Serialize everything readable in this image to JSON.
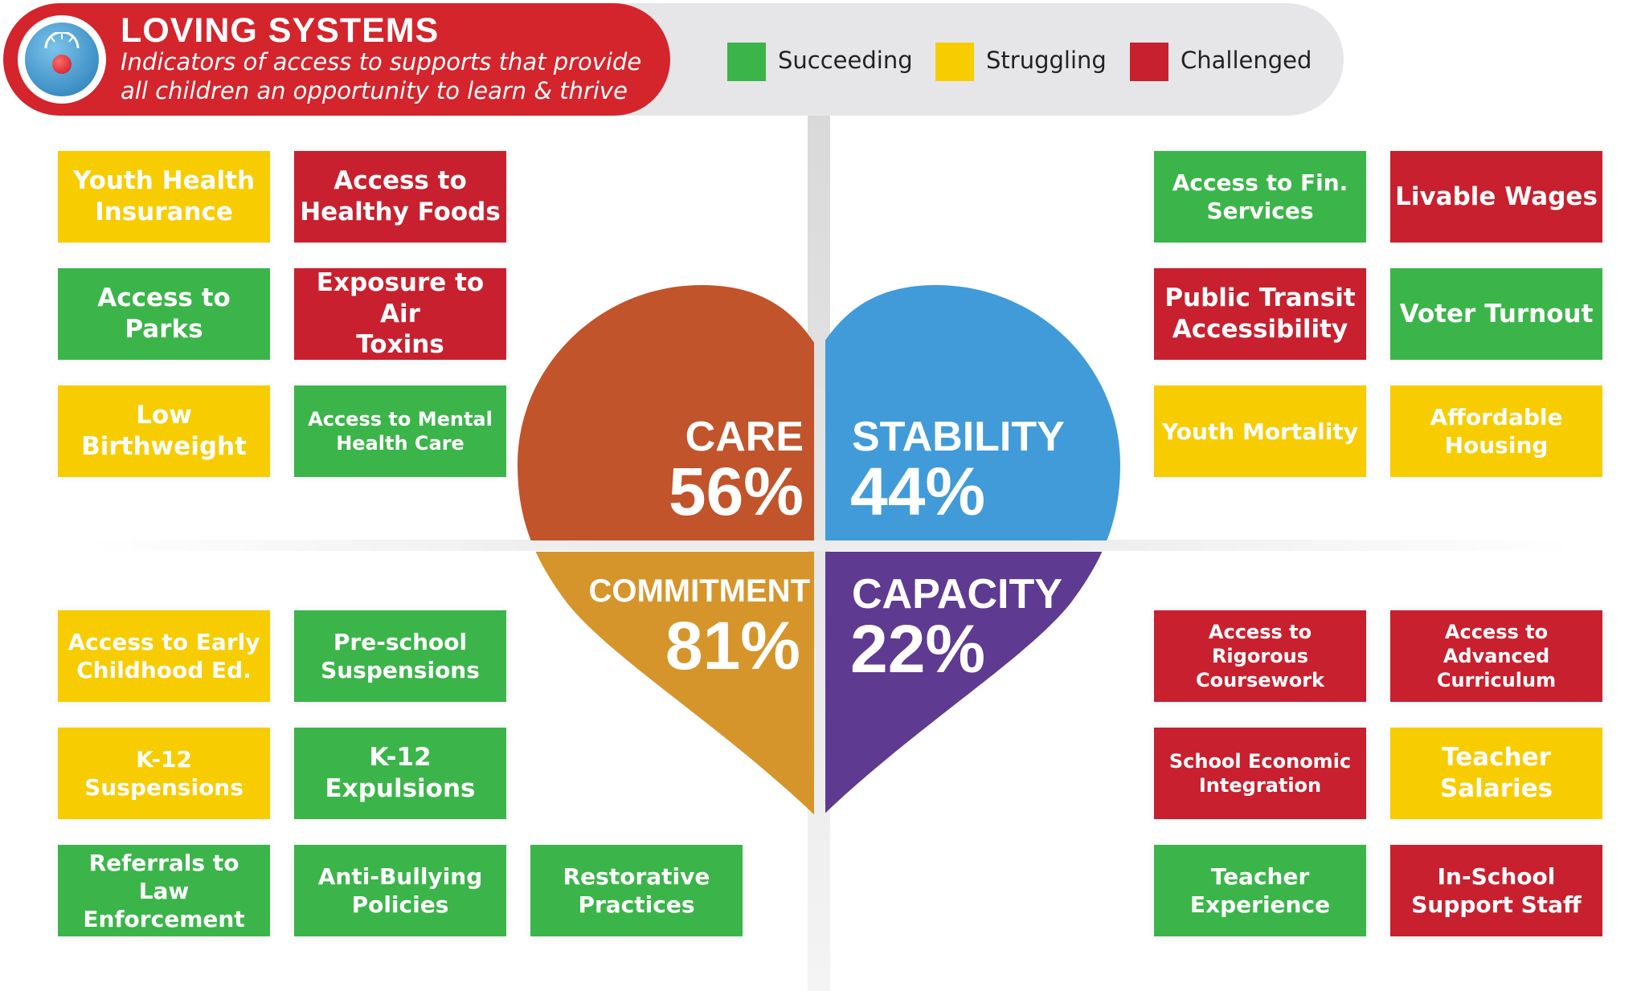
{
  "header": {
    "title": "LOVING SYSTEMS",
    "subtitle_line1": "Indicators of access to supports that provide",
    "subtitle_line2": "all children an opportunity to learn & thrive",
    "icon": "gauge-icon"
  },
  "legend": [
    {
      "label": "Succeeding",
      "color": "#3bb54a"
    },
    {
      "label": "Struggling",
      "color": "#f7cc00"
    },
    {
      "label": "Challenged",
      "color": "#c8202f"
    }
  ],
  "colors": {
    "green": "#3bb54a",
    "yellow": "#f7cc00",
    "red": "#c8202f",
    "care": "#c1542b",
    "stability": "#419bd8",
    "commitment": "#d5952b",
    "capacity": "#5f3a91"
  },
  "quadrants": {
    "care": {
      "name": "CARE",
      "percent": "56%",
      "value": 56
    },
    "stability": {
      "name": "STABILITY",
      "percent": "44%",
      "value": 44
    },
    "commitment": {
      "name": "COMMITMENT",
      "percent": "81%",
      "value": 81
    },
    "capacity": {
      "name": "CAPACITY",
      "percent": "22%",
      "value": 22
    }
  },
  "indicators": {
    "care": [
      {
        "label": "Youth Health\nInsurance",
        "status": "Struggling"
      },
      {
        "label": "Access to\nHealthy Foods",
        "status": "Challenged"
      },
      {
        "label": "Access to Parks",
        "status": "Succeeding"
      },
      {
        "label": "Exposure to Air\nToxins",
        "status": "Challenged"
      },
      {
        "label": "Low\nBirthweight",
        "status": "Struggling"
      },
      {
        "label": "Access to Mental\nHealth Care",
        "status": "Succeeding"
      }
    ],
    "stability": [
      {
        "label": "Access to Fin.\nServices",
        "status": "Succeeding"
      },
      {
        "label": "Livable Wages",
        "status": "Challenged"
      },
      {
        "label": "Public Transit\nAccessibility",
        "status": "Challenged"
      },
      {
        "label": "Voter Turnout",
        "status": "Succeeding"
      },
      {
        "label": "Youth Mortality",
        "status": "Struggling"
      },
      {
        "label": "Affordable\nHousing",
        "status": "Struggling"
      }
    ],
    "commitment": [
      {
        "label": "Access to Early\nChildhood Ed.",
        "status": "Struggling"
      },
      {
        "label": "Pre-school\nSuspensions",
        "status": "Succeeding"
      },
      {
        "label": "K-12\nSuspensions",
        "status": "Struggling"
      },
      {
        "label": "K-12\nExpulsions",
        "status": "Succeeding"
      },
      {
        "label": "Referrals to Law\nEnforcement",
        "status": "Succeeding"
      },
      {
        "label": "Anti-Bullying\nPolicies",
        "status": "Succeeding"
      },
      {
        "label": "Restorative\nPractices",
        "status": "Succeeding"
      }
    ],
    "capacity": [
      {
        "label": "Access to Rigorous\nCoursework",
        "status": "Challenged"
      },
      {
        "label": "Access to Advanced\nCurriculum",
        "status": "Challenged"
      },
      {
        "label": "School Economic\nIntegration",
        "status": "Challenged"
      },
      {
        "label": "Teacher\nSalaries",
        "status": "Struggling"
      },
      {
        "label": "Teacher\nExperience",
        "status": "Succeeding"
      },
      {
        "label": "In-School\nSupport Staff",
        "status": "Challenged"
      }
    ]
  }
}
